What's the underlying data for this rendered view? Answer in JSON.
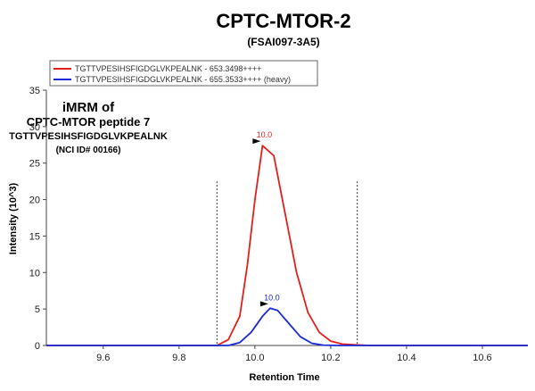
{
  "chart_data": {
    "type": "line",
    "title": "CPTC-MTOR-2",
    "subtitle": "(FSAI097-3A5)",
    "xlabel": "Retention Time",
    "ylabel": "Intensity (10^3)",
    "xlim": [
      9.45,
      10.72
    ],
    "ylim": [
      0,
      35
    ],
    "x_ticks": [
      "9.6",
      "9.8",
      "10.0",
      "10.2",
      "10.4",
      "10.6"
    ],
    "y_ticks": [
      "0",
      "5",
      "10",
      "15",
      "20",
      "25",
      "30",
      "35"
    ],
    "grid": false,
    "legend_position": "top-left",
    "boundaries": [
      9.9,
      10.27
    ],
    "annotation": {
      "line1": "iMRM of",
      "line2": "CPTC-MTOR peptide 7",
      "line3": "TGTTVPESIHSFIGDGLVKPEALNK",
      "line4": "(NCI ID# 00166)"
    },
    "series": [
      {
        "name": "TGTTVPESIHSFIGDGLVKPEALNK - 653.3498++++",
        "color": "#e0201b",
        "peak_label": "10.0",
        "peak_x": 10.02,
        "peak_y": 27.4,
        "x": [
          9.45,
          9.9,
          9.93,
          9.96,
          9.98,
          10.0,
          10.02,
          10.05,
          10.08,
          10.11,
          10.14,
          10.17,
          10.2,
          10.23,
          10.26,
          10.3,
          10.72
        ],
        "y": [
          0,
          0,
          0.8,
          4,
          11,
          20,
          27.4,
          26,
          18,
          10,
          4.5,
          1.8,
          0.6,
          0.2,
          0.1,
          0,
          0
        ]
      },
      {
        "name": "TGTTVPESIHSFIGDGLVKPEALNK - 655.3533++++ (heavy)",
        "color": "#1a2bd6",
        "peak_label": "10.0",
        "peak_x": 10.04,
        "peak_y": 5.1,
        "x": [
          9.45,
          9.93,
          9.96,
          9.99,
          10.02,
          10.04,
          10.06,
          10.09,
          10.12,
          10.15,
          10.18,
          10.22,
          10.72
        ],
        "y": [
          0,
          0,
          0.4,
          1.8,
          4,
          5.1,
          4.8,
          3,
          1.2,
          0.3,
          0.05,
          0,
          0
        ]
      }
    ]
  }
}
